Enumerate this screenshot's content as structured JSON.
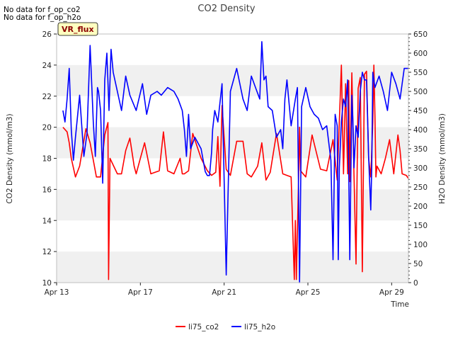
{
  "notes": [
    "No data for f_op_co2",
    "No data for f_op_h2o"
  ],
  "badge": "VR_flux",
  "colors": {
    "co2": "#ff0000",
    "h2o": "#0000ff",
    "band": "#f0f0f0",
    "badge_bg": "#ffffc0"
  },
  "chart_data": {
    "type": "line",
    "title": "CO2 Density",
    "xlabel": "Time",
    "ylabel_left": "CO2 Density (mmol/m3)",
    "ylabel_right": "H2O Density (mmol/m3)",
    "xlim": [
      0,
      16.8
    ],
    "ylim_left": [
      10,
      26
    ],
    "ylim_right": [
      0,
      650
    ],
    "x_ticks": [
      {
        "value": 0,
        "label": "Apr 13"
      },
      {
        "value": 4,
        "label": "Apr 17"
      },
      {
        "value": 8,
        "label": "Apr 21"
      },
      {
        "value": 12,
        "label": "Apr 25"
      },
      {
        "value": 16,
        "label": "Apr 29"
      }
    ],
    "y_ticks_left": [
      10,
      12,
      14,
      16,
      18,
      20,
      22,
      24,
      26
    ],
    "y_ticks_right": [
      0,
      50,
      100,
      150,
      200,
      250,
      300,
      350,
      400,
      450,
      500,
      550,
      600,
      650
    ],
    "series": [
      {
        "name": "li75_co2",
        "axis": "left",
        "x": [
          0.3,
          0.5,
          0.6,
          0.7,
          0.9,
          1.1,
          1.4,
          1.6,
          1.9,
          2.1,
          2.3,
          2.45,
          2.48,
          2.55,
          2.9,
          3.1,
          3.3,
          3.5,
          3.7,
          3.8,
          4.0,
          4.2,
          4.5,
          4.9,
          5.1,
          5.3,
          5.6,
          5.9,
          6.0,
          6.1,
          6.3,
          6.5,
          6.9,
          7.2,
          7.4,
          7.6,
          7.7,
          7.8,
          7.9,
          8.1,
          8.3,
          8.6,
          8.9,
          9.1,
          9.3,
          9.6,
          9.8,
          10.0,
          10.2,
          10.5,
          10.8,
          11.0,
          11.2,
          11.35,
          11.4,
          11.45,
          11.55,
          11.6,
          11.65,
          11.9,
          12.2,
          12.6,
          12.9,
          13.2,
          13.4,
          13.6,
          13.7,
          13.8,
          13.9,
          13.95,
          14.0,
          14.1,
          14.2,
          14.3,
          14.4,
          14.5,
          14.6,
          14.7,
          14.8,
          14.9,
          15.0,
          15.1,
          15.15,
          15.2,
          15.25,
          15.3,
          15.5,
          15.7,
          15.9,
          16.1,
          16.3,
          16.4,
          16.5,
          16.7,
          16.8
        ],
        "y": [
          20.0,
          19.7,
          19.0,
          18.0,
          16.8,
          17.5,
          19.9,
          19.0,
          16.8,
          16.8,
          19.5,
          20.3,
          10.2,
          18.0,
          17.0,
          17.0,
          18.5,
          19.3,
          17.5,
          17.0,
          18.0,
          19.0,
          17.0,
          17.2,
          19.7,
          17.2,
          17.0,
          18.0,
          17.0,
          17.0,
          17.2,
          19.6,
          18.0,
          17.2,
          16.9,
          17.1,
          19.4,
          16.2,
          21.4,
          17.3,
          16.9,
          19.1,
          19.1,
          17.0,
          16.8,
          17.5,
          19.0,
          16.6,
          17.1,
          19.6,
          17.0,
          16.9,
          16.8,
          10.2,
          14.0,
          10.2,
          16.4,
          20.0,
          17.2,
          16.8,
          19.5,
          17.3,
          17.2,
          19.2,
          16.6,
          24.0,
          17.0,
          22.8,
          17.0,
          23.0,
          16.5,
          23.5,
          17.0,
          11.2,
          22.5,
          23.2,
          10.7,
          23.4,
          23.6,
          18.0,
          16.8,
          20.3,
          24.0,
          20.8,
          16.8,
          17.5,
          17.0,
          18.0,
          19.2,
          17.0,
          19.5,
          18.5,
          17.0,
          16.9,
          16.7
        ]
      },
      {
        "name": "li75_h2o",
        "axis": "right",
        "x": [
          0.3,
          0.4,
          0.5,
          0.6,
          0.7,
          0.8,
          0.9,
          1.1,
          1.3,
          1.45,
          1.6,
          1.75,
          1.85,
          1.95,
          2.0,
          2.1,
          2.2,
          2.3,
          2.4,
          2.5,
          2.6,
          2.7,
          2.9,
          3.1,
          3.3,
          3.5,
          3.8,
          4.1,
          4.3,
          4.5,
          4.8,
          5.0,
          5.3,
          5.6,
          5.8,
          6.0,
          6.1,
          6.2,
          6.3,
          6.4,
          6.6,
          6.9,
          7.1,
          7.2,
          7.3,
          7.4,
          7.45,
          7.55,
          7.7,
          7.9,
          8.1,
          8.3,
          8.6,
          8.9,
          9.1,
          9.3,
          9.5,
          9.7,
          9.8,
          9.9,
          10.0,
          10.1,
          10.3,
          10.5,
          10.7,
          10.8,
          10.9,
          11.0,
          11.2,
          11.4,
          11.5,
          11.6,
          11.7,
          11.9,
          12.1,
          12.3,
          12.5,
          12.7,
          12.9,
          13.1,
          13.2,
          13.3,
          13.4,
          13.45,
          13.5,
          13.6,
          13.7,
          13.8,
          13.9,
          14.0,
          14.1,
          14.15,
          14.2,
          14.3,
          14.4,
          14.5,
          14.6,
          14.7,
          14.8,
          14.9,
          15.0,
          15.05,
          15.1,
          15.2,
          15.4,
          15.6,
          15.8,
          16.0,
          16.2,
          16.4,
          16.6,
          16.8
        ],
        "y": [
          450,
          420,
          480,
          560,
          400,
          320,
          380,
          490,
          330,
          390,
          620,
          420,
          330,
          510,
          500,
          450,
          260,
          530,
          600,
          450,
          610,
          550,
          500,
          450,
          540,
          490,
          450,
          520,
          440,
          490,
          500,
          490,
          510,
          500,
          480,
          450,
          400,
          330,
          440,
          350,
          380,
          350,
          290,
          280,
          280,
          340,
          400,
          450,
          420,
          520,
          20,
          500,
          560,
          480,
          450,
          540,
          510,
          480,
          630,
          530,
          540,
          460,
          450,
          380,
          400,
          350,
          480,
          530,
          410,
          480,
          510,
          0,
          460,
          510,
          460,
          440,
          430,
          400,
          410,
          320,
          60,
          440,
          410,
          60,
          300,
          420,
          480,
          460,
          530,
          60,
          490,
          420,
          300,
          410,
          380,
          500,
          550,
          530,
          530,
          330,
          190,
          300,
          550,
          510,
          540,
          500,
          450,
          550,
          520,
          480,
          560,
          560
        ]
      }
    ],
    "legend": [
      "li75_co2",
      "li75_h2o"
    ],
    "legend_position": "bottom-center",
    "grid_bands": true
  }
}
